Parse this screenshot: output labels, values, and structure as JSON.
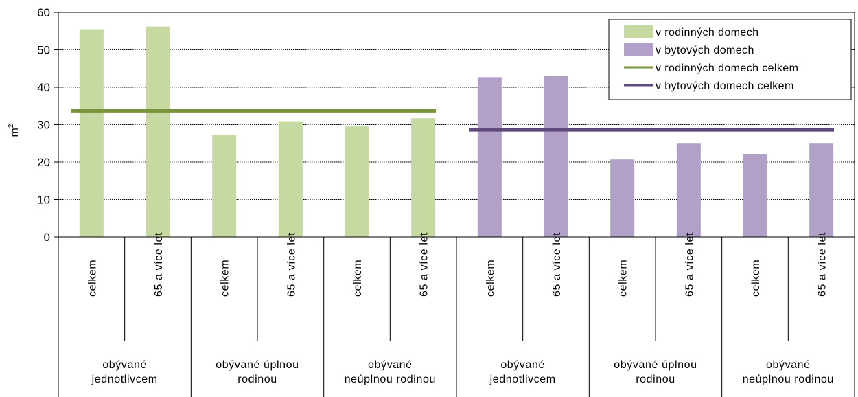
{
  "chart_data": {
    "type": "bar",
    "ylabel": "m",
    "ylabel_sup": "2",
    "ylim": [
      0,
      60
    ],
    "yticks": [
      "0",
      "10",
      "20",
      "30",
      "40",
      "50",
      "60"
    ],
    "grid": "horizontal dotted",
    "legend_position": "top-right",
    "groups": [
      {
        "label": [
          "obývané",
          "jednotlivcem"
        ],
        "subcategories": [
          "celkem",
          "65 a více let"
        ],
        "series": "v rodinných domech",
        "values": [
          55.5,
          56.2
        ]
      },
      {
        "label": [
          "obývané úplnou",
          "rodinou"
        ],
        "subcategories": [
          "celkem",
          "65 a více let"
        ],
        "series": "v rodinných domech",
        "values": [
          27.2,
          30.9
        ]
      },
      {
        "label": [
          "obývané",
          "neúplnou rodinou"
        ],
        "subcategories": [
          "celkem",
          "65 a více let"
        ],
        "series": "v rodinných domech",
        "values": [
          29.5,
          31.7
        ]
      },
      {
        "label": [
          "obývané",
          "jednotlivcem"
        ],
        "subcategories": [
          "celkem",
          "65 a více let"
        ],
        "series": "v bytových domech",
        "values": [
          42.7,
          43.0
        ]
      },
      {
        "label": [
          "obývané úplnou",
          "rodinou"
        ],
        "subcategories": [
          "celkem",
          "65 a více let"
        ],
        "series": "v bytových domech",
        "values": [
          20.7,
          25.1
        ]
      },
      {
        "label": [
          "obývané",
          "neúplnou rodinou"
        ],
        "subcategories": [
          "celkem",
          "65 a více let"
        ],
        "series": "v bytových domech",
        "values": [
          22.2,
          25.1
        ]
      }
    ],
    "reference_lines": [
      {
        "name": "v rodinných domech celkem",
        "value": 33.7,
        "from_group": 0,
        "to_group": 2
      },
      {
        "name": "v bytových domech celkem",
        "value": 28.6,
        "from_group": 3,
        "to_group": 5
      }
    ],
    "legend": [
      {
        "label": "v rodinných domech",
        "kind": "bar",
        "color": "#c5d9a0"
      },
      {
        "label": "v bytových domech",
        "kind": "bar",
        "color": "#b1a0c7"
      },
      {
        "label": "v rodinných domech celkem",
        "kind": "line",
        "color": "#77933c"
      },
      {
        "label": "v bytových domech celkem",
        "kind": "line",
        "color": "#604a7b"
      }
    ],
    "colors": {
      "v rodinných domech": "#c5d9a0",
      "v bytových domech": "#b1a0c7",
      "v rodinných domech celkem": "#77933c",
      "v bytových domech celkem": "#604a7b"
    }
  }
}
